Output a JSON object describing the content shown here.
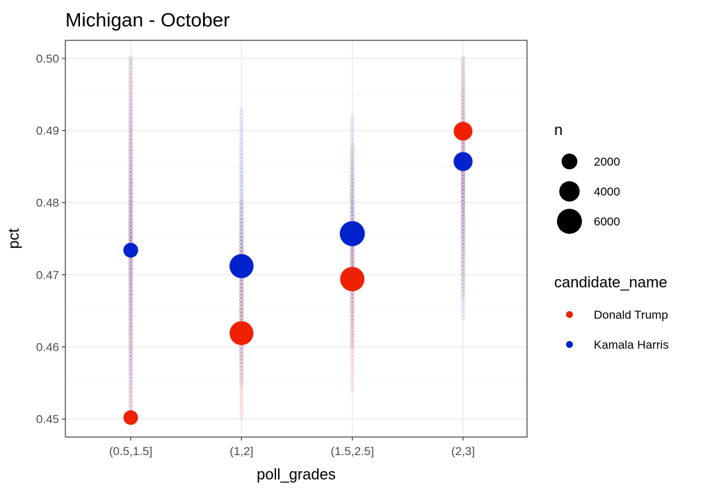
{
  "chart_data": {
    "type": "scatter",
    "title": "Michigan - October",
    "xlabel": "poll_grades",
    "ylabel": "pct",
    "categories": [
      "(0.5,1.5]",
      "(1,2]",
      "(1.5,2.5]",
      "(2,3]"
    ],
    "yticks": [
      "0.45",
      "0.46",
      "0.47",
      "0.48",
      "0.49",
      "0.50"
    ],
    "ylim": [
      0.4475,
      0.5025
    ],
    "grid": true,
    "size_legend": {
      "title": "n",
      "entries": [
        {
          "label": "2000",
          "value": 2000
        },
        {
          "label": "4000",
          "value": 4000
        },
        {
          "label": "6000",
          "value": 6000
        }
      ]
    },
    "color_legend": {
      "title": "candidate_name",
      "entries": [
        {
          "label": "Donald Trump",
          "color": "#ee2200"
        },
        {
          "label": "Kamala Harris",
          "color": "#0022cc"
        }
      ]
    },
    "series": [
      {
        "name": "Donald Trump",
        "color": "#ee2200",
        "summary": [
          {
            "category": "(0.5,1.5]",
            "pct": 0.4502,
            "n": 1500
          },
          {
            "category": "(1,2]",
            "pct": 0.4619,
            "n": 5500
          },
          {
            "category": "(1.5,2.5]",
            "pct": 0.4694,
            "n": 5700
          },
          {
            "category": "(2,3]",
            "pct": 0.4899,
            "n": 3300
          }
        ],
        "raw_ranges": [
          {
            "category": "(0.5,1.5]",
            "min": 0.45,
            "max": 0.5
          },
          {
            "category": "(1,2]",
            "min": 0.45,
            "max": 0.48
          },
          {
            "category": "(1.5,2.5]",
            "min": 0.454,
            "max": 0.488
          },
          {
            "category": "(2,3]",
            "min": 0.467,
            "max": 0.5
          }
        ]
      },
      {
        "name": "Kamala Harris",
        "color": "#0022cc",
        "summary": [
          {
            "category": "(0.5,1.5]",
            "pct": 0.4734,
            "n": 1600
          },
          {
            "category": "(1,2]",
            "pct": 0.4712,
            "n": 5600
          },
          {
            "category": "(1.5,2.5]",
            "pct": 0.4757,
            "n": 6000
          },
          {
            "category": "(2,3]",
            "pct": 0.4857,
            "n": 3400
          }
        ],
        "raw_ranges": [
          {
            "category": "(0.5,1.5]",
            "min": 0.45,
            "max": 0.5
          },
          {
            "category": "(1,2]",
            "min": 0.455,
            "max": 0.493
          },
          {
            "category": "(1.5,2.5]",
            "min": 0.46,
            "max": 0.492
          },
          {
            "category": "(2,3]",
            "min": 0.464,
            "max": 0.5
          }
        ]
      }
    ]
  }
}
